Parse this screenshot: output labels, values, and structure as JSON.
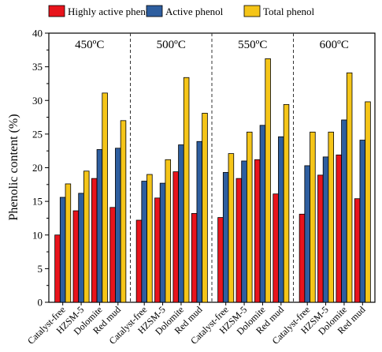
{
  "chart_data": {
    "type": "bar",
    "ylabel": "Phenolic content (%)",
    "xlabel": "",
    "ylim": [
      0,
      40
    ],
    "yticks": [
      0,
      5,
      10,
      15,
      20,
      25,
      30,
      35,
      40
    ],
    "legend_position": "top",
    "groups": [
      "450ºC",
      "500ºC",
      "550ºC",
      "600ºC"
    ],
    "categories": [
      "Catalyst-free",
      "HZSM-5",
      "Dolomite",
      "Red mud"
    ],
    "series": [
      {
        "name": "Highly active phenol",
        "color": "#e8141c",
        "values": [
          [
            10.0,
            13.6,
            18.4,
            14.1
          ],
          [
            12.2,
            15.5,
            19.4,
            13.2
          ],
          [
            12.6,
            18.4,
            21.2,
            16.1
          ],
          [
            13.1,
            18.9,
            21.9,
            15.4
          ]
        ]
      },
      {
        "name": "Active phenol",
        "color": "#2e5e9f",
        "values": [
          [
            15.6,
            16.2,
            22.7,
            22.9
          ],
          [
            18.0,
            17.7,
            23.4,
            23.9
          ],
          [
            19.3,
            21.0,
            26.3,
            24.6
          ],
          [
            20.3,
            21.6,
            27.1,
            24.1
          ]
        ]
      },
      {
        "name": "Total phenol",
        "color": "#f5c518",
        "values": [
          [
            17.6,
            19.5,
            31.1,
            27.0
          ],
          [
            19.0,
            21.2,
            33.4,
            28.1
          ],
          [
            22.1,
            25.3,
            36.2,
            29.4
          ],
          [
            25.3,
            25.3,
            34.1,
            29.8
          ]
        ]
      }
    ],
    "grid": false
  }
}
